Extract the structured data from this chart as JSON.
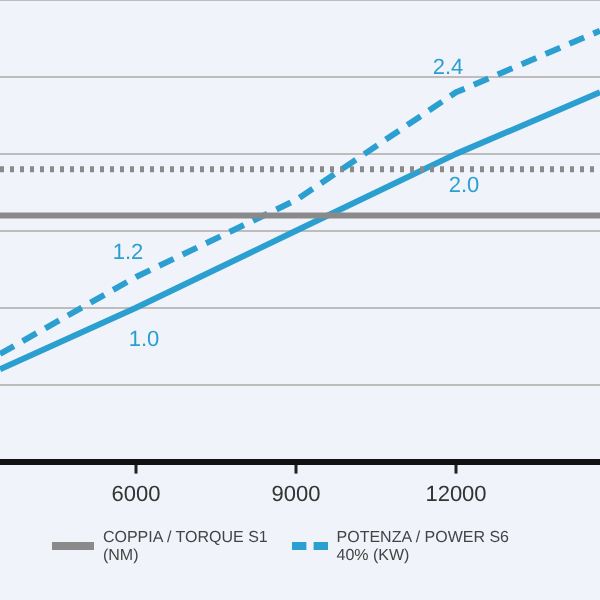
{
  "chart_data": {
    "type": "line",
    "tick_labels": "x",
    "xlim": [
      3450,
      14700
    ],
    "xticks": [
      6000,
      9000,
      12000
    ],
    "grid": "y",
    "legend": "bottom",
    "marker": "none",
    "series": [
      {
        "name": "COPPIA / TORQUE S1 (NM)",
        "color": "#8a8a8a",
        "x": [
          3450,
          14700
        ],
        "values": [
          1.6,
          1.6
        ],
        "line_style": "solid"
      },
      {
        "name": "POTENZA / POWER S6 40% (KW)",
        "color": "#2a9fd0",
        "x": [
          3450,
          6000,
          9000,
          12000,
          14700
        ],
        "values": [
          0.7,
          1.2,
          1.7,
          2.4,
          2.8
        ],
        "value_labels": [
          null,
          "1.2",
          null,
          "2.4",
          null
        ],
        "line_style": "dashed"
      },
      {
        "color": "#8a8a8a",
        "x": [
          3450,
          14700
        ],
        "values": [
          1.9,
          1.9
        ],
        "line_style": "dotted"
      },
      {
        "color": "#2a9fd0",
        "x": [
          3450,
          6000,
          9000,
          12000,
          14700
        ],
        "values": [
          0.6,
          1.0,
          1.5,
          2.0,
          2.4
        ],
        "value_labels": [
          null,
          "1.0",
          null,
          "2.0",
          null
        ],
        "line_style": "solid"
      }
    ]
  }
}
